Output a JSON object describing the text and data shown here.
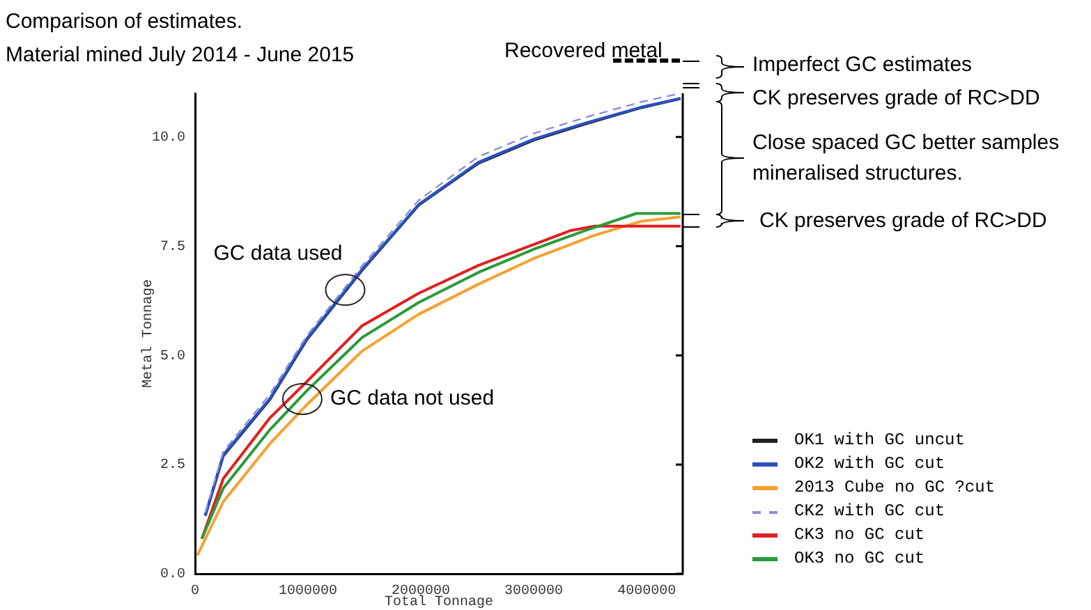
{
  "chart_data": {
    "type": "line",
    "title": "Comparison of estimates.",
    "subtitle": "Material mined July 2014 - June 2015",
    "xlabel": "Total Tonnage",
    "ylabel": "Metal Tonnage",
    "xlim": [
      0,
      4320000
    ],
    "xticks": [
      0,
      1000000,
      2000000,
      3000000,
      4000000
    ],
    "ylim": [
      0,
      11
    ],
    "yticks": [
      {
        "value": 0,
        "label": "0.0"
      },
      {
        "value": 2.5,
        "label": "2.5"
      },
      {
        "value": 5,
        "label": "5.0"
      },
      {
        "value": 7.5,
        "label": "7.5"
      },
      {
        "value": 10,
        "label": "10.0"
      }
    ],
    "grid": false,
    "legend": "bottom right",
    "marker": "none",
    "series": [
      {
        "name": "OK1 with GC uncut",
        "color": "#222222",
        "x": [
          90000,
          250000,
          660000,
          990000,
          1480000,
          1980000,
          2510000,
          3000000,
          3460000,
          3950000,
          4300000
        ],
        "values": [
          1.33,
          2.7,
          3.98,
          5.36,
          6.95,
          8.44,
          9.4,
          9.93,
          10.3,
          10.67,
          10.88
        ]
      },
      {
        "name": "OK2 with GC cut",
        "color": "#2a52be",
        "x": [
          90000,
          250000,
          660000,
          990000,
          1480000,
          1980000,
          2510000,
          3000000,
          3460000,
          3950000,
          4300000
        ],
        "values": [
          1.33,
          2.72,
          4.0,
          5.38,
          6.97,
          8.45,
          9.42,
          9.95,
          10.32,
          10.68,
          10.88
        ]
      },
      {
        "name": "2013 Cube no GC ?cut",
        "color": "#f7a030",
        "x": [
          20000,
          250000,
          660000,
          990000,
          1480000,
          1980000,
          2510000,
          3000000,
          3540000,
          3950000,
          4300000
        ],
        "values": [
          0.42,
          1.65,
          2.97,
          3.87,
          5.1,
          5.94,
          6.63,
          7.22,
          7.75,
          8.07,
          8.17
        ]
      },
      {
        "name": "CK2 with GC cut",
        "color": "#8a8fd8",
        "line_style": "dashed",
        "x": [
          90000,
          250000,
          660000,
          990000,
          1480000,
          1980000,
          2510000,
          3000000,
          3460000,
          3950000,
          4300000
        ],
        "values": [
          1.4,
          2.8,
          4.1,
          5.45,
          7.05,
          8.55,
          9.55,
          10.08,
          10.45,
          10.8,
          11.0
        ]
      },
      {
        "name": "CK3 no GC cut",
        "color": "#e02020",
        "x": [
          60000,
          250000,
          660000,
          990000,
          1480000,
          1980000,
          2510000,
          3000000,
          3330000,
          3540000,
          4300000
        ],
        "values": [
          0.8,
          2.18,
          3.56,
          4.4,
          5.68,
          6.42,
          7.06,
          7.54,
          7.86,
          7.96,
          7.96
        ]
      },
      {
        "name": "OK3 no GC cut",
        "color": "#2a9a3a",
        "x": [
          60000,
          250000,
          660000,
          990000,
          1480000,
          1980000,
          2510000,
          3000000,
          3460000,
          3910000,
          4300000
        ],
        "values": [
          0.8,
          1.96,
          3.29,
          4.19,
          5.41,
          6.21,
          6.9,
          7.43,
          7.86,
          8.25,
          8.25
        ]
      }
    ],
    "annotations": [
      {
        "text": "GC data used",
        "x": 1330000,
        "y": 6.5
      },
      {
        "text": "GC data not used",
        "x": 950000,
        "y": 4.0
      },
      "Recovered metal",
      "Imperfect GC estimates",
      "CK preserves grade of RC>DD",
      "Close spaced GC better samples mineralised structures.",
      "CK preserves grade of RC>DD"
    ]
  }
}
